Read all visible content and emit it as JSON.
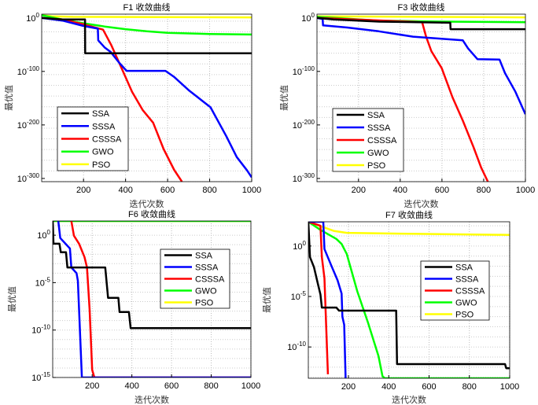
{
  "chart_data": [
    {
      "type": "line",
      "title": "F1 收敛曲线",
      "xlabel": "迭代次数",
      "ylabel": "最优值",
      "yscale": "log",
      "xlim": [
        1,
        1000
      ],
      "ylim_log10": [
        -306,
        7
      ],
      "xticks": [
        200,
        400,
        600,
        800,
        1000
      ],
      "yticks_log10": [
        0,
        -100,
        -200,
        -300
      ],
      "grid": true,
      "legend_position": "lower-left",
      "series": [
        {
          "name": "SSA",
          "color": "#000000",
          "points_log10": [
            [
              1,
              0
            ],
            [
              100,
              -3
            ],
            [
              207,
              -3
            ],
            [
              208,
              -66
            ],
            [
              1000,
              -66
            ]
          ]
        },
        {
          "name": "SSSA",
          "color": "#0000ff",
          "points_log10": [
            [
              1,
              0
            ],
            [
              100,
              -5
            ],
            [
              200,
              -15
            ],
            [
              268,
              -20
            ],
            [
              270,
              -42
            ],
            [
              300,
              -55
            ],
            [
              330,
              -64
            ],
            [
              370,
              -84
            ],
            [
              405,
              -99
            ],
            [
              590,
              -99
            ],
            [
              630,
              -110
            ],
            [
              700,
              -135
            ],
            [
              804,
              -167
            ],
            [
              879,
              -221
            ],
            [
              929,
              -260
            ],
            [
              978,
              -285
            ],
            [
              1000,
              -298
            ]
          ]
        },
        {
          "name": "CSSSA",
          "color": "#ff0000",
          "points_log10": [
            [
              1,
              0
            ],
            [
              100,
              -3
            ],
            [
              200,
              -12
            ],
            [
              293,
              -22
            ],
            [
              331,
              -50
            ],
            [
              381,
              -94
            ],
            [
              431,
              -138
            ],
            [
              481,
              -172
            ],
            [
              531,
              -196
            ],
            [
              581,
              -245
            ],
            [
              631,
              -284
            ],
            [
              668,
              -306
            ]
          ]
        },
        {
          "name": "GWO",
          "color": "#00ff00",
          "points_log10": [
            [
              1,
              5
            ],
            [
              100,
              -3
            ],
            [
              200,
              -10
            ],
            [
              300,
              -16
            ],
            [
              400,
              -21
            ],
            [
              500,
              -25
            ],
            [
              600,
              -28
            ],
            [
              800,
              -30
            ],
            [
              1000,
              -31
            ]
          ]
        },
        {
          "name": "PSO",
          "color": "#ffff00",
          "points_log10": [
            [
              1,
              5
            ],
            [
              50,
              3
            ],
            [
              150,
              2
            ],
            [
              1000,
              1
            ]
          ]
        }
      ]
    },
    {
      "type": "line",
      "title": "F3 收敛曲线",
      "xlabel": "迭代次数",
      "ylabel": "最优值",
      "yscale": "log",
      "xlim": [
        1,
        1000
      ],
      "ylim_log10": [
        -306,
        7
      ],
      "xticks": [
        200,
        400,
        600,
        800,
        1000
      ],
      "yticks_log10": [
        0,
        -100,
        -200,
        -300
      ],
      "grid": true,
      "legend_position": "lower-left",
      "series": [
        {
          "name": "SSA",
          "color": "#000000",
          "points_log10": [
            [
              1,
              0
            ],
            [
              80,
              -3
            ],
            [
              300,
              -7
            ],
            [
              640,
              -9
            ],
            [
              641,
              -21
            ],
            [
              1000,
              -21
            ]
          ]
        },
        {
          "name": "SSSA",
          "color": "#0000ff",
          "points_log10": [
            [
              1,
              0
            ],
            [
              28,
              -2
            ],
            [
              30,
              -14
            ],
            [
              146,
              -18
            ],
            [
              297,
              -25
            ],
            [
              461,
              -35
            ],
            [
              700,
              -42
            ],
            [
              725,
              -57
            ],
            [
              770,
              -77
            ],
            [
              876,
              -78
            ],
            [
              902,
              -103
            ],
            [
              952,
              -138
            ],
            [
              1000,
              -180
            ]
          ]
        },
        {
          "name": "CSSSA",
          "color": "#ff0000",
          "points_log10": [
            [
              1,
              0
            ],
            [
              505,
              -8
            ],
            [
              524,
              -35
            ],
            [
              549,
              -62
            ],
            [
              599,
              -94
            ],
            [
              650,
              -148
            ],
            [
              700,
              -192
            ],
            [
              751,
              -241
            ],
            [
              788,
              -280
            ],
            [
              820,
              -306
            ]
          ]
        },
        {
          "name": "GWO",
          "color": "#00ff00",
          "points_log10": [
            [
              1,
              2
            ],
            [
              300,
              -5
            ],
            [
              600,
              -7
            ],
            [
              1000,
              -8
            ]
          ]
        },
        {
          "name": "PSO",
          "color": "#ffff00",
          "points_log10": [
            [
              1,
              3
            ],
            [
              1000,
              1
            ]
          ]
        }
      ]
    },
    {
      "type": "line",
      "title": "F6 收敛曲线",
      "xlabel": "迭代次数",
      "ylabel": "最优值",
      "yscale": "log",
      "xlim": [
        1,
        1000
      ],
      "ylim_log10": [
        -15,
        1.5
      ],
      "xticks": [
        200,
        400,
        600,
        800,
        1000
      ],
      "yticks_log10": [
        0,
        -5,
        -10,
        -15
      ],
      "grid": true,
      "legend_position": "upper-right",
      "series": [
        {
          "name": "SSA",
          "color": "#000000",
          "points_log10": [
            [
              1,
              1.5
            ],
            [
              2,
              1
            ],
            [
              5,
              -0.9
            ],
            [
              35,
              -0.9
            ],
            [
              42,
              -1.8
            ],
            [
              68,
              -1.8
            ],
            [
              75,
              -3.4
            ],
            [
              266,
              -3.4
            ],
            [
              280,
              -6.6
            ],
            [
              332,
              -6.6
            ],
            [
              338,
              -8.1
            ],
            [
              385,
              -8.1
            ],
            [
              394,
              -9.8
            ],
            [
              1000,
              -9.8
            ]
          ]
        },
        {
          "name": "SSSA",
          "color": "#0000ff",
          "points_log10": [
            [
              29,
              1.5
            ],
            [
              39,
              -0.3
            ],
            [
              88,
              -1.4
            ],
            [
              95,
              -3.4
            ],
            [
              121,
              -4
            ],
            [
              128,
              -4.8
            ],
            [
              148,
              -15
            ],
            [
              1000,
              -15
            ]
          ]
        },
        {
          "name": "CSSSA",
          "color": "#ff0000",
          "points_log10": [
            [
              95,
              1.5
            ],
            [
              108,
              -0.05
            ],
            [
              134,
              -0.9
            ],
            [
              161,
              -2.3
            ],
            [
              174,
              -3.4
            ],
            [
              187,
              -7.8
            ],
            [
              200,
              -14.2
            ],
            [
              211,
              -15
            ],
            [
              1000,
              -15
            ]
          ]
        },
        {
          "name": "GWO",
          "color": "#00ff00",
          "points_log10": [
            [
              1,
              1.5
            ],
            [
              1000,
              1.5
            ]
          ]
        },
        {
          "name": "PSO",
          "color": "#ffff00",
          "points_log10": [
            [
              1,
              1.5
            ],
            [
              1000,
              1.5
            ]
          ]
        }
      ]
    },
    {
      "type": "line",
      "title": "F7 收敛曲线",
      "xlabel": "迭代次数",
      "ylabel": "最优值",
      "yscale": "log",
      "xlim": [
        1,
        1000
      ],
      "ylim_log10": [
        -13.1,
        2.4
      ],
      "xticks": [
        200,
        400,
        600,
        800,
        1000
      ],
      "yticks_log10": [
        0,
        -5,
        -10
      ],
      "grid": true,
      "legend_position": "upper-right",
      "series": [
        {
          "name": "SSA",
          "color": "#000000",
          "points_log10": [
            [
              1,
              2.4
            ],
            [
              9,
              -1.1
            ],
            [
              29,
              -2.1
            ],
            [
              48,
              -3.7
            ],
            [
              61,
              -4.8
            ],
            [
              68,
              -6.1
            ],
            [
              140,
              -6.1
            ],
            [
              153,
              -6.4
            ],
            [
              437,
              -6.4
            ],
            [
              441,
              -11.7
            ],
            [
              977,
              -11.7
            ],
            [
              983,
              -12.1
            ],
            [
              1000,
              -12.1
            ]
          ]
        },
        {
          "name": "SSSA",
          "color": "#0000ff",
          "points_log10": [
            [
              1,
              2.4
            ],
            [
              75,
              2.4
            ],
            [
              81,
              -0.3
            ],
            [
              114,
              -1.9
            ],
            [
              146,
              -3.4
            ],
            [
              166,
              -4.7
            ],
            [
              170,
              -7.0
            ],
            [
              179,
              -7.8
            ],
            [
              186,
              -13.1
            ]
          ]
        },
        {
          "name": "CSSSA",
          "color": "#ff0000",
          "points_log10": [
            [
              1,
              2.4
            ],
            [
              61,
              2.0
            ],
            [
              68,
              -1.1
            ],
            [
              81,
              -3.2
            ],
            [
              98,
              -12.7
            ]
          ]
        },
        {
          "name": "GWO",
          "color": "#00ff00",
          "points_log10": [
            [
              1,
              2.4
            ],
            [
              61,
              1.6
            ],
            [
              140,
              0.7
            ],
            [
              166,
              0.2
            ],
            [
              192,
              -0.8
            ],
            [
              244,
              -4.5
            ],
            [
              297,
              -7.6
            ],
            [
              349,
              -10.9
            ],
            [
              369,
              -12.9
            ],
            [
              381,
              -13.1
            ],
            [
              1000,
              -13.1
            ]
          ]
        },
        {
          "name": "PSO",
          "color": "#ffff00",
          "points_log10": [
            [
              1,
              2.4
            ],
            [
              127,
              1.5
            ],
            [
              192,
              1.3
            ],
            [
              545,
              1.2
            ],
            [
              1000,
              1.1
            ]
          ]
        }
      ]
    }
  ]
}
